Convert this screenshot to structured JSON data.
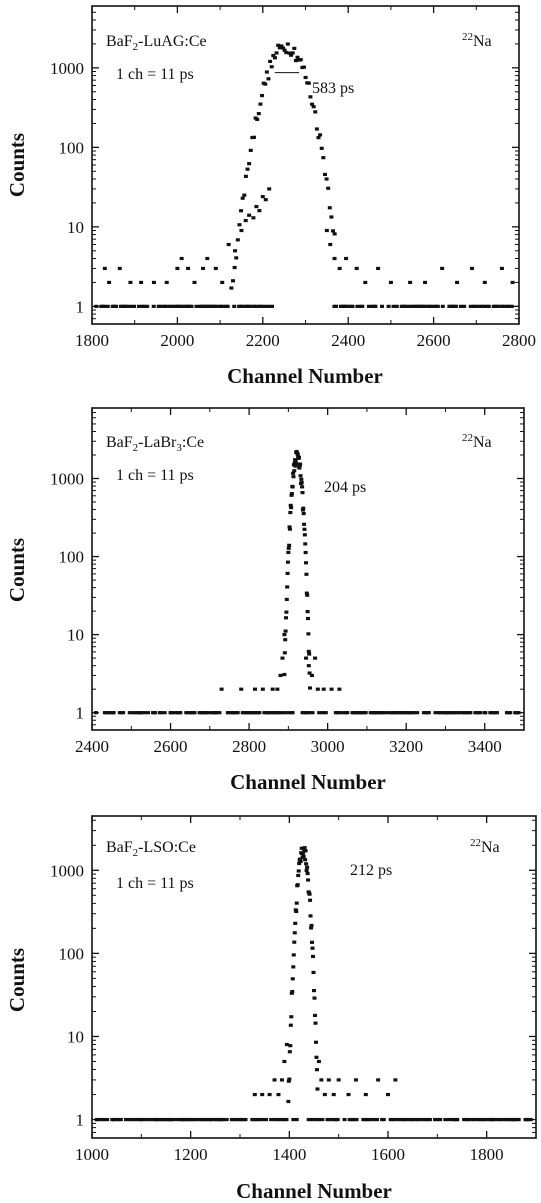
{
  "chart_data": [
    {
      "type": "scatter",
      "sample": "BaF2-LuAG:Ce",
      "sample_parts": [
        "BaF",
        "2",
        "-LuAG:Ce"
      ],
      "calibration": "1 ch = 11 ps",
      "source": "22Na",
      "source_parts": [
        "22",
        "Na"
      ],
      "fwhm": "583 ps",
      "xlabel": "Channel Number",
      "ylabel": "Counts",
      "yscale": "log",
      "xlim": [
        1800,
        2800
      ],
      "ylim": [
        0.6,
        6000
      ],
      "xticks": [
        1800,
        2000,
        2200,
        2400,
        2600,
        2800
      ],
      "yticks": [
        1,
        10,
        100,
        1000
      ],
      "peak": {
        "center": 2255,
        "sigma": 34,
        "height": 1900
      },
      "fwhm_marker": {
        "x_start": 2228,
        "x_end": 2285,
        "y": 870
      },
      "baseline": {
        "x_start": 1810,
        "x_end": 2790,
        "x_gap": [
          2238,
          2365
        ]
      },
      "tails": {
        "left": 2100,
        "right": 2370
      },
      "points": [
        {
          "x": 1830,
          "y": 3
        },
        {
          "x": 1840,
          "y": 2
        },
        {
          "x": 1865,
          "y": 3
        },
        {
          "x": 1890,
          "y": 2
        },
        {
          "x": 1915,
          "y": 2
        },
        {
          "x": 1945,
          "y": 2
        },
        {
          "x": 1975,
          "y": 2
        },
        {
          "x": 2000,
          "y": 3
        },
        {
          "x": 2010,
          "y": 4
        },
        {
          "x": 2025,
          "y": 3
        },
        {
          "x": 2040,
          "y": 2
        },
        {
          "x": 2060,
          "y": 3
        },
        {
          "x": 2070,
          "y": 4
        },
        {
          "x": 2090,
          "y": 3
        },
        {
          "x": 2105,
          "y": 2
        },
        {
          "x": 2120,
          "y": 6
        },
        {
          "x": 2135,
          "y": 5
        },
        {
          "x": 2150,
          "y": 9
        },
        {
          "x": 2160,
          "y": 12
        },
        {
          "x": 2168,
          "y": 14
        },
        {
          "x": 2178,
          "y": 13
        },
        {
          "x": 2185,
          "y": 18
        },
        {
          "x": 2192,
          "y": 16
        },
        {
          "x": 2200,
          "y": 24
        },
        {
          "x": 2207,
          "y": 22
        },
        {
          "x": 2215,
          "y": 30
        },
        {
          "x": 2350,
          "y": 9
        },
        {
          "x": 2358,
          "y": 6
        },
        {
          "x": 2368,
          "y": 4
        },
        {
          "x": 2380,
          "y": 3
        },
        {
          "x": 2395,
          "y": 4
        },
        {
          "x": 2420,
          "y": 3
        },
        {
          "x": 2440,
          "y": 2
        },
        {
          "x": 2470,
          "y": 3
        },
        {
          "x": 2500,
          "y": 2
        },
        {
          "x": 2545,
          "y": 2
        },
        {
          "x": 2580,
          "y": 2
        },
        {
          "x": 2620,
          "y": 3
        },
        {
          "x": 2655,
          "y": 2
        },
        {
          "x": 2690,
          "y": 3
        },
        {
          "x": 2720,
          "y": 2
        },
        {
          "x": 2760,
          "y": 3
        },
        {
          "x": 2785,
          "y": 2
        }
      ]
    },
    {
      "type": "scatter",
      "sample": "BaF2-LaBr3:Ce",
      "sample_parts": [
        "BaF",
        "2",
        "-LaBr",
        "3",
        ":Ce"
      ],
      "calibration": "1 ch = 11 ps",
      "source": "22Na",
      "source_parts": [
        "22",
        "Na"
      ],
      "fwhm": "204 ps",
      "xlabel": "Channel Number",
      "ylabel": "Counts",
      "yscale": "log",
      "xlim": [
        2400,
        3500
      ],
      "ylim": [
        0.6,
        8000
      ],
      "xticks": [
        2400,
        2600,
        2800,
        3000,
        3200,
        3400
      ],
      "yticks": [
        1,
        10,
        100,
        1000
      ],
      "peak": {
        "center": 2922,
        "sigma": 9,
        "height": 1900
      },
      "baseline": {
        "x_start": 2420,
        "x_end": 3490,
        "x_gap": [
          2912,
          2932
        ]
      },
      "tails": {
        "left": 2890,
        "right": 2955
      },
      "points": [
        {
          "x": 2410,
          "y": 1
        },
        {
          "x": 2455,
          "y": 1
        },
        {
          "x": 2505,
          "y": 1
        },
        {
          "x": 2520,
          "y": 1
        },
        {
          "x": 2560,
          "y": 1
        },
        {
          "x": 2600,
          "y": 1
        },
        {
          "x": 2625,
          "y": 1
        },
        {
          "x": 2650,
          "y": 1
        },
        {
          "x": 2690,
          "y": 1
        },
        {
          "x": 2715,
          "y": 1
        },
        {
          "x": 2730,
          "y": 2
        },
        {
          "x": 2760,
          "y": 1
        },
        {
          "x": 2780,
          "y": 2
        },
        {
          "x": 2800,
          "y": 1
        },
        {
          "x": 2815,
          "y": 2
        },
        {
          "x": 2835,
          "y": 2
        },
        {
          "x": 2850,
          "y": 1
        },
        {
          "x": 2860,
          "y": 2
        },
        {
          "x": 2872,
          "y": 2
        },
        {
          "x": 2880,
          "y": 3
        },
        {
          "x": 2885,
          "y": 5
        },
        {
          "x": 2890,
          "y": 10
        },
        {
          "x": 2945,
          "y": 5
        },
        {
          "x": 2952,
          "y": 4
        },
        {
          "x": 2960,
          "y": 3
        },
        {
          "x": 2968,
          "y": 5
        },
        {
          "x": 2975,
          "y": 2
        },
        {
          "x": 2990,
          "y": 2
        },
        {
          "x": 3010,
          "y": 2
        },
        {
          "x": 3030,
          "y": 2
        },
        {
          "x": 3050,
          "y": 1
        },
        {
          "x": 3080,
          "y": 1
        },
        {
          "x": 3120,
          "y": 1
        },
        {
          "x": 3170,
          "y": 1
        },
        {
          "x": 3210,
          "y": 1
        },
        {
          "x": 3250,
          "y": 1
        },
        {
          "x": 3300,
          "y": 1
        },
        {
          "x": 3320,
          "y": 1
        },
        {
          "x": 3400,
          "y": 1
        },
        {
          "x": 3480,
          "y": 1
        }
      ]
    },
    {
      "type": "scatter",
      "sample": "BaF2-LSO:Ce",
      "sample_parts": [
        "BaF",
        "2",
        "-LSO:Ce"
      ],
      "calibration": "1 ch = 11 ps",
      "source": "22Na",
      "source_parts": [
        "22",
        "Na"
      ],
      "fwhm": "212 ps",
      "xlabel": "Channel Number",
      "ylabel": "Counts",
      "yscale": "log",
      "xlim": [
        1000,
        1900
      ],
      "ylim": [
        0.6,
        4500
      ],
      "xticks": [
        1000,
        1200,
        1400,
        1600,
        1800
      ],
      "yticks": [
        1,
        10,
        100,
        1000
      ],
      "peak": {
        "center": 1428,
        "sigma": 8,
        "height": 1750
      },
      "baseline": {
        "x_start": 1010,
        "x_end": 1890,
        "x_gap": [
          1418,
          1438
        ]
      },
      "tails": {
        "left": 1395,
        "right": 1462
      },
      "points": [
        {
          "x": 1010,
          "y": 1
        },
        {
          "x": 1045,
          "y": 1
        },
        {
          "x": 1100,
          "y": 1
        },
        {
          "x": 1115,
          "y": 1
        },
        {
          "x": 1130,
          "y": 1
        },
        {
          "x": 1160,
          "y": 1
        },
        {
          "x": 1185,
          "y": 1
        },
        {
          "x": 1240,
          "y": 1
        },
        {
          "x": 1260,
          "y": 1
        },
        {
          "x": 1285,
          "y": 1
        },
        {
          "x": 1300,
          "y": 1
        },
        {
          "x": 1330,
          "y": 2
        },
        {
          "x": 1345,
          "y": 2
        },
        {
          "x": 1360,
          "y": 2
        },
        {
          "x": 1370,
          "y": 3
        },
        {
          "x": 1378,
          "y": 2
        },
        {
          "x": 1385,
          "y": 3
        },
        {
          "x": 1390,
          "y": 5
        },
        {
          "x": 1395,
          "y": 8
        },
        {
          "x": 1460,
          "y": 5
        },
        {
          "x": 1465,
          "y": 3
        },
        {
          "x": 1472,
          "y": 2
        },
        {
          "x": 1480,
          "y": 3
        },
        {
          "x": 1490,
          "y": 2
        },
        {
          "x": 1500,
          "y": 3
        },
        {
          "x": 1520,
          "y": 2
        },
        {
          "x": 1535,
          "y": 3
        },
        {
          "x": 1555,
          "y": 2
        },
        {
          "x": 1580,
          "y": 3
        },
        {
          "x": 1600,
          "y": 2
        },
        {
          "x": 1615,
          "y": 3
        },
        {
          "x": 1650,
          "y": 1
        },
        {
          "x": 1700,
          "y": 1
        },
        {
          "x": 1740,
          "y": 1
        },
        {
          "x": 1810,
          "y": 1
        },
        {
          "x": 1855,
          "y": 1
        },
        {
          "x": 1880,
          "y": 1
        }
      ]
    }
  ]
}
